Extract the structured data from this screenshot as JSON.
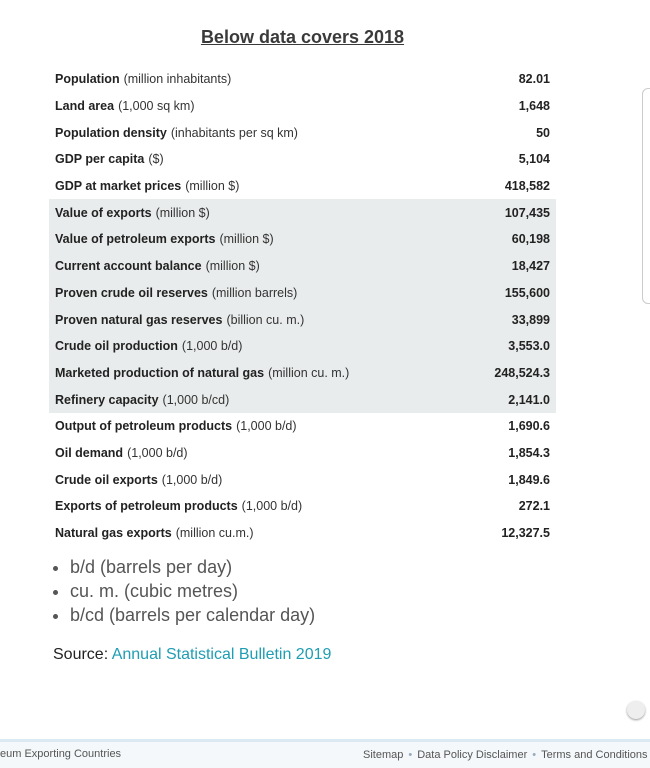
{
  "title": "Below data covers 2018",
  "table": {
    "rows": [
      {
        "label": "Population",
        "unit": "(million inhabitants)",
        "value": "82.01"
      },
      {
        "label": "Land area",
        "unit": "(1,000 sq km)",
        "value": "1,648"
      },
      {
        "label": "Population density",
        "unit": "(inhabitants per sq km)",
        "value": "50"
      },
      {
        "label": "GDP per capita",
        "unit": "($)",
        "value": "5,104"
      },
      {
        "label": "GDP at market prices",
        "unit": "(million $)",
        "value": "418,582"
      },
      {
        "label": "Value of exports",
        "unit": "(million $)",
        "value": "107,435"
      },
      {
        "label": "Value of petroleum exports",
        "unit": "(million $)",
        "value": "60,198"
      },
      {
        "label": "Current account balance",
        "unit": "(million $)",
        "value": "18,427"
      },
      {
        "label": "Proven crude oil reserves",
        "unit": "(million barrels)",
        "value": "155,600"
      },
      {
        "label": "Proven natural gas reserves",
        "unit": "(billion cu. m.)",
        "value": "33,899"
      },
      {
        "label": "Crude oil production",
        "unit": "(1,000 b/d)",
        "value": "3,553.0"
      },
      {
        "label": "Marketed production of natural gas",
        "unit": "(million cu. m.)",
        "value": "248,524.3"
      },
      {
        "label": "Refinery capacity",
        "unit": "(1,000 b/cd)",
        "value": "2,141.0"
      },
      {
        "label": "Output of petroleum products",
        "unit": "(1,000 b/d)",
        "value": "1,690.6"
      },
      {
        "label": "Oil demand",
        "unit": "(1,000 b/d)",
        "value": "1,854.3"
      },
      {
        "label": "Crude oil exports",
        "unit": "(1,000 b/d)",
        "value": "1,849.6"
      },
      {
        "label": "Exports of petroleum products",
        "unit": "(1,000 b/d)",
        "value": "272.1"
      },
      {
        "label": "Natural gas exports",
        "unit": "(million cu.m.)",
        "value": "12,327.5"
      }
    ]
  },
  "notes": [
    "b/d (barrels per day)",
    "cu. m. (cubic metres)",
    "b/cd (barrels per calendar day)"
  ],
  "source": {
    "label": "Source:",
    "link": "Annual Statistical Bulletin 2019"
  },
  "footer": {
    "left": "eum Exporting Countries",
    "links": [
      "Sitemap",
      "Data Policy Disclaimer",
      "Terms and Conditions"
    ]
  }
}
